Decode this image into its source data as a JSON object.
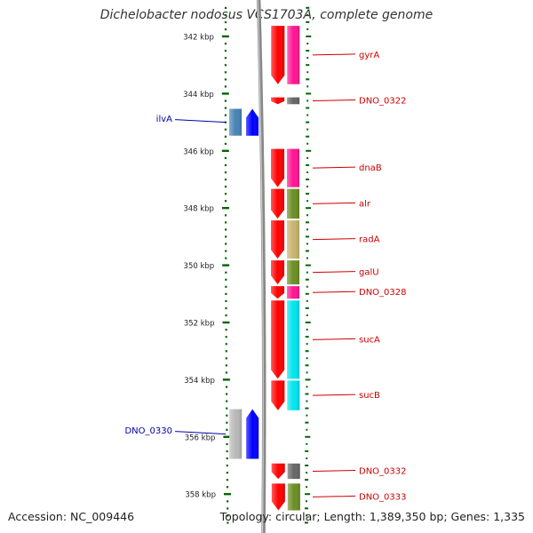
{
  "title": "Dichelobacter nodosus VCS1703A, complete genome",
  "accession": "Accession: NC_009446",
  "topology": "Topology: circular; Length: 1,389,350 bp; Genes: 1,335",
  "colors": {
    "strand_forward": "#ff0000",
    "strand_reverse": "#0000ff",
    "label_forward": "#cc0000",
    "label_reverse": "#0000aa",
    "tick": "#006600",
    "backbone": "#888888",
    "cog_magenta": "#ff1493",
    "cog_olive": "#6b8e23",
    "cog_khaki": "#c8b46e",
    "cog_cyan": "#00e5ee",
    "cog_gray": "#666666",
    "cog_steelblue": "#4682b4",
    "cog_lightgray": "#b8b8b8"
  },
  "axis": {
    "unit": "kbp",
    "ticks": [
      {
        "label": "342 kbp",
        "value": 342
      },
      {
        "label": "344 kbp",
        "value": 344
      },
      {
        "label": "346 kbp",
        "value": 346
      },
      {
        "label": "348 kbp",
        "value": 348
      },
      {
        "label": "350 kbp",
        "value": 350
      },
      {
        "label": "352 kbp",
        "value": 352
      },
      {
        "label": "354 kbp",
        "value": 354
      },
      {
        "label": "356 kbp",
        "value": 356
      },
      {
        "label": "358 kbp",
        "value": 358
      }
    ]
  },
  "genes": [
    {
      "name": "gyrA",
      "strand": "+",
      "start": 341.6,
      "end": 343.7,
      "cog": "cog_magenta"
    },
    {
      "name": "DNO_0322",
      "strand": "+",
      "start": 344.1,
      "end": 344.4,
      "cog": "cog_gray"
    },
    {
      "name": "ilvA",
      "strand": "-",
      "start": 344.5,
      "end": 345.5,
      "cog": "cog_steelblue"
    },
    {
      "name": "dnaB",
      "strand": "+",
      "start": 345.9,
      "end": 347.3,
      "cog": "cog_magenta"
    },
    {
      "name": "alr",
      "strand": "+",
      "start": 347.3,
      "end": 348.4,
      "cog": "cog_olive"
    },
    {
      "name": "radA",
      "strand": "+",
      "start": 348.4,
      "end": 349.8,
      "cog": "cog_khaki"
    },
    {
      "name": "galU",
      "strand": "+",
      "start": 349.8,
      "end": 350.7,
      "cog": "cog_olive"
    },
    {
      "name": "DNO_0328",
      "strand": "+",
      "start": 350.7,
      "end": 351.2,
      "cog": "cog_magenta"
    },
    {
      "name": "sucA",
      "strand": "+",
      "start": 351.2,
      "end": 354.0,
      "cog": "cog_cyan"
    },
    {
      "name": "sucB",
      "strand": "+",
      "start": 354.0,
      "end": 355.1,
      "cog": "cog_cyan"
    },
    {
      "name": "DNO_0330",
      "strand": "-",
      "start": 355.0,
      "end": 356.8,
      "cog": "cog_lightgray"
    },
    {
      "name": "DNO_0332",
      "strand": "+",
      "start": 356.9,
      "end": 357.5,
      "cog": "cog_gray"
    },
    {
      "name": "DNO_0333",
      "strand": "+",
      "start": 357.6,
      "end": 358.6,
      "cog": "cog_olive"
    }
  ]
}
